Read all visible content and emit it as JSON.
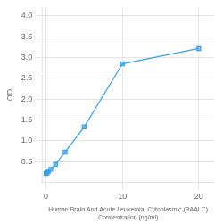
{
  "chart_data": {
    "type": "line",
    "xlabel": "Human Brain And Acute Leukemia, Cytoplasmic (BAALC)\nConcentration (ng/ml)",
    "ylabel": "OD",
    "x": [
      0,
      0.156,
      0.312,
      0.625,
      1.25,
      2.5,
      5,
      10,
      20
    ],
    "values": [
      0.212,
      0.229,
      0.265,
      0.311,
      0.433,
      0.728,
      1.33,
      2.847,
      3.214
    ],
    "marker": "square",
    "xlim": [
      -0.5,
      22
    ],
    "ylim": [
      0,
      4.2
    ],
    "xticks": [
      0,
      10,
      20
    ],
    "yticks": [
      0.5,
      {
        "value": 1,
        "label": "1.0"
      },
      1.5,
      {
        "value": 2,
        "label": "2.0"
      },
      2.5,
      {
        "value": 3,
        "label": "3.0"
      },
      3.5,
      {
        "value": 4,
        "label": "4.0"
      }
    ],
    "grid": true
  }
}
